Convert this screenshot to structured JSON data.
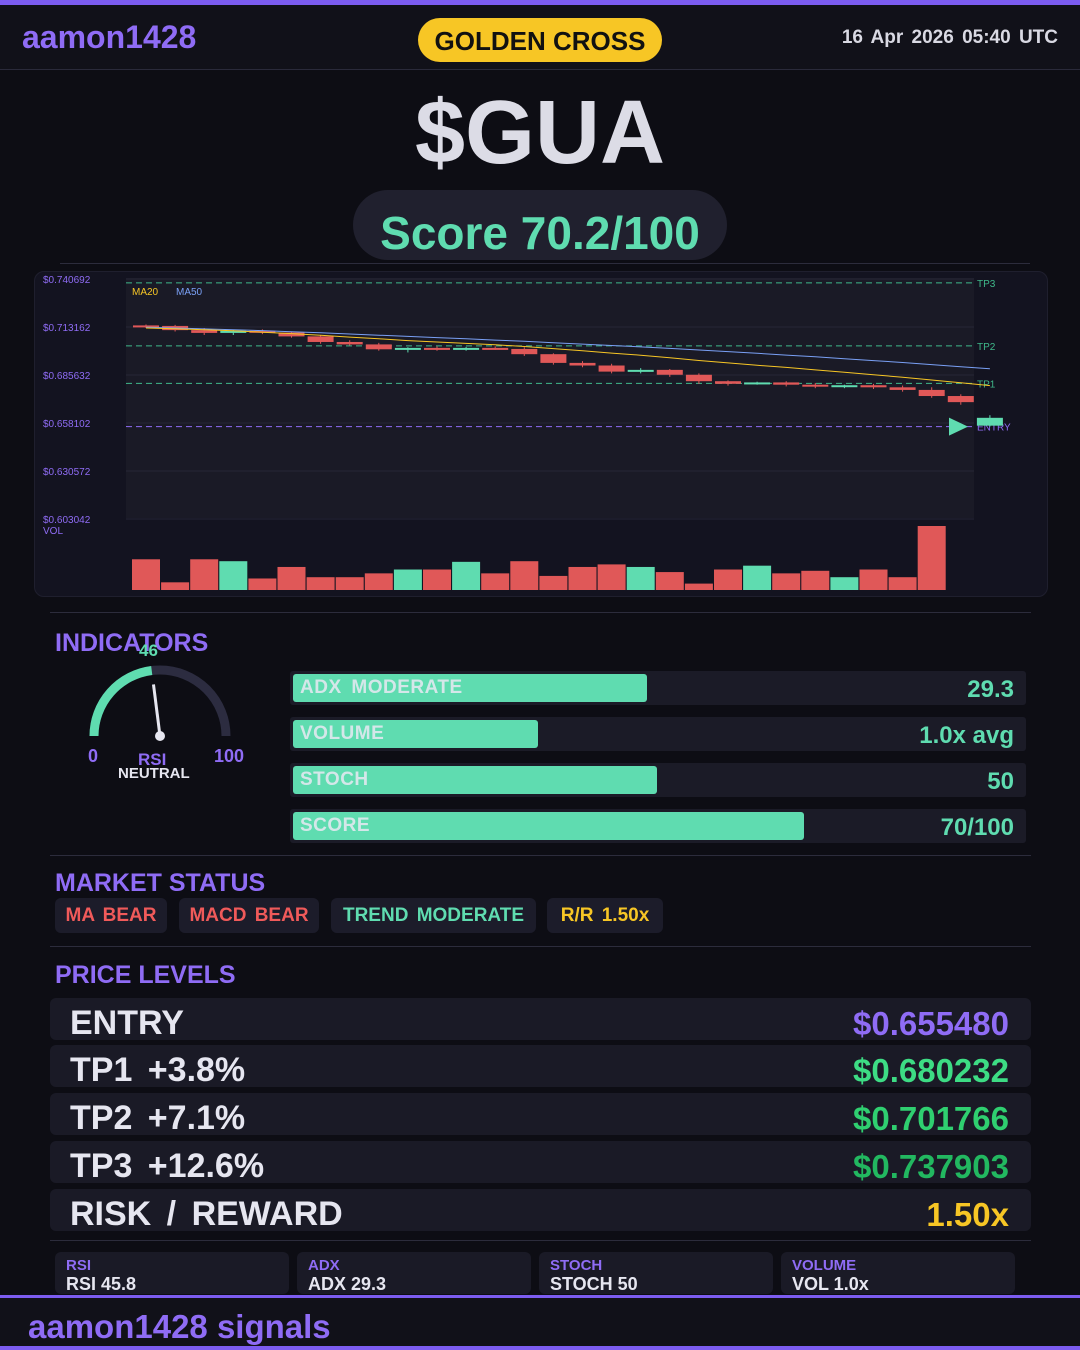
{
  "header": {
    "brand": "aamon1428",
    "badge": "GOLDEN CROSS",
    "datetime": "16 Apr 2026  05:40 UTC"
  },
  "ticker": "$GUA",
  "score": "Score 70.2/100",
  "chart_data": {
    "type": "candlestick",
    "y_ticks": [
      "$0.740692",
      "$0.713162",
      "$0.685632",
      "$0.658102",
      "$0.630572",
      "$0.603042"
    ],
    "ylim": [
      0.603042,
      0.740692
    ],
    "legend": [
      "MA20",
      "MA50"
    ],
    "volume_label": "VOL",
    "levels": [
      {
        "name": "TP3",
        "value": 0.737903
      },
      {
        "name": "TP2",
        "value": 0.701766
      },
      {
        "name": "TP1",
        "value": 0.680232
      },
      {
        "name": "ENTRY",
        "value": 0.65548
      }
    ],
    "candles": [
      [
        0.7135,
        0.714,
        0.712,
        0.7132
      ],
      [
        0.7132,
        0.7138,
        0.71,
        0.7108
      ],
      [
        0.7108,
        0.712,
        0.708,
        0.7092
      ],
      [
        0.7092,
        0.711,
        0.708,
        0.7104
      ],
      [
        0.7104,
        0.7112,
        0.7085,
        0.7094
      ],
      [
        0.7094,
        0.71,
        0.7065,
        0.7072
      ],
      [
        0.7072,
        0.708,
        0.703,
        0.704
      ],
      [
        0.704,
        0.705,
        0.702,
        0.7026
      ],
      [
        0.7026,
        0.7035,
        0.699,
        0.6998
      ],
      [
        0.6998,
        0.701,
        0.698,
        0.7006
      ],
      [
        0.7006,
        0.7015,
        0.699,
        0.6996
      ],
      [
        0.6996,
        0.7012,
        0.699,
        0.7006
      ],
      [
        0.7006,
        0.7015,
        0.6995,
        0.7
      ],
      [
        0.7,
        0.701,
        0.696,
        0.697
      ],
      [
        0.697,
        0.6975,
        0.691,
        0.692
      ],
      [
        0.692,
        0.693,
        0.6895,
        0.6905
      ],
      [
        0.6905,
        0.6915,
        0.686,
        0.687
      ],
      [
        0.687,
        0.689,
        0.686,
        0.688
      ],
      [
        0.688,
        0.6885,
        0.684,
        0.6852
      ],
      [
        0.6852,
        0.686,
        0.68,
        0.6815
      ],
      [
        0.6815,
        0.682,
        0.679,
        0.68
      ],
      [
        0.68,
        0.6812,
        0.6795,
        0.6808
      ],
      [
        0.6808,
        0.6815,
        0.6785,
        0.6795
      ],
      [
        0.6795,
        0.6805,
        0.6775,
        0.6785
      ],
      [
        0.6785,
        0.6795,
        0.6775,
        0.6792
      ],
      [
        0.6792,
        0.68,
        0.677,
        0.678
      ],
      [
        0.678,
        0.679,
        0.6755,
        0.6765
      ],
      [
        0.6765,
        0.678,
        0.672,
        0.673
      ],
      [
        0.673,
        0.674,
        0.668,
        0.6695
      ],
      [
        0.656,
        0.662,
        0.6555,
        0.6605
      ]
    ],
    "ma20": [
      0.712,
      0.7116,
      0.711,
      0.7104,
      0.7096,
      0.7088,
      0.7078,
      0.7068,
      0.7058,
      0.7048,
      0.704,
      0.7032,
      0.7024,
      0.7014,
      0.7002,
      0.699,
      0.6976,
      0.6964,
      0.695,
      0.6934,
      0.692,
      0.6906,
      0.6894,
      0.688,
      0.6866,
      0.6852,
      0.6838,
      0.6822,
      0.6806,
      0.679
    ],
    "ma50": [
      0.7124,
      0.712,
      0.7115,
      0.711,
      0.7105,
      0.7099,
      0.7093,
      0.7086,
      0.7079,
      0.7072,
      0.7065,
      0.7058,
      0.7051,
      0.7044,
      0.7036,
      0.7028,
      0.702,
      0.7012,
      0.7003,
      0.6994,
      0.6985,
      0.6975,
      0.6965,
      0.6955,
      0.6944,
      0.6933,
      0.6922,
      0.691,
      0.6898,
      0.6886
    ],
    "volume": [
      0.48,
      0.12,
      0.48,
      0.45,
      0.18,
      0.36,
      0.2,
      0.2,
      0.26,
      0.32,
      0.32,
      0.44,
      0.26,
      0.45,
      0.22,
      0.36,
      0.4,
      0.36,
      0.28,
      0.1,
      0.32,
      0.38,
      0.26,
      0.3,
      0.2,
      0.32,
      0.2,
      1.0,
      0.0,
      0.0
    ]
  },
  "indicators": {
    "title": "INDICATORS",
    "rsi": {
      "value": "46",
      "min": "0",
      "max": "100",
      "label": "RSI",
      "state": "NEUTRAL",
      "level": 46
    },
    "bars": [
      {
        "label": "ADX  MODERATE",
        "value": "29.3",
        "fill": 0.485,
        "light": true
      },
      {
        "label": "VOLUME",
        "value": "1.0x avg",
        "fill": 0.335,
        "light": true
      },
      {
        "label": "STOCH",
        "value": "50",
        "fill": 0.498,
        "light": true
      },
      {
        "label": "SCORE",
        "value": "70/100",
        "fill": 0.7,
        "light": true
      }
    ]
  },
  "market_status": {
    "title": "MARKET STATUS",
    "chips": [
      {
        "text": "MA BEAR",
        "color": "#f05a5a"
      },
      {
        "text": "MACD BEAR",
        "color": "#f05a5a"
      },
      {
        "text": "TREND MODERATE",
        "color": "#5fdcb0"
      },
      {
        "text": "R/R  1.50x",
        "color": "#f7c625"
      }
    ]
  },
  "price_levels": {
    "title": "PRICE LEVELS",
    "rows": [
      {
        "label": "ENTRY",
        "value": "$0.655480",
        "color": "#8f6cf5"
      },
      {
        "label": "TP1  +3.8%",
        "value": "$0.680232",
        "color": "#3ddc84"
      },
      {
        "label": "TP2  +7.1%",
        "value": "$0.701766",
        "color": "#2fcf70"
      },
      {
        "label": "TP3  +12.6%",
        "value": "$0.737903",
        "color": "#22b860"
      },
      {
        "label": "RISK / REWARD",
        "value": "1.50x",
        "color": "#f7c625"
      }
    ]
  },
  "stats": [
    {
      "key": "RSI",
      "value": "RSI 45.8"
    },
    {
      "key": "ADX",
      "value": "ADX 29.3"
    },
    {
      "key": "STOCH",
      "value": "STOCH 50"
    },
    {
      "key": "VOLUME",
      "value": "VOL 1.0x"
    }
  ],
  "footer": "aamon1428 signals"
}
